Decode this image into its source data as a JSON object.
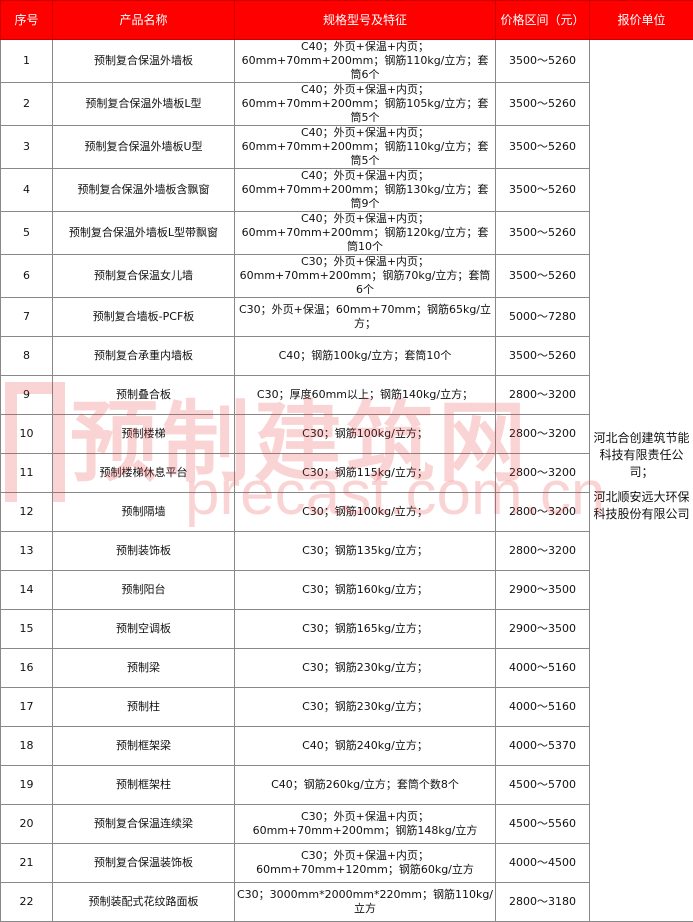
{
  "table": {
    "header": [
      "序号",
      "产品名称",
      "规格型号及特征",
      "价格区间（元）",
      "报价单位"
    ],
    "rows": [
      [
        "1",
        "预制复合保温外墙板",
        "C40；外页+保温+内页；60mm+70mm+200mm；钢筋110kg/立方；套筒6个",
        "3500～5260"
      ],
      [
        "2",
        "预制复合保温外墙板L型",
        "C40；外页+保温+内页；60mm+70mm+200mm；钢筋105kg/立方；套筒5个",
        "3500～5260"
      ],
      [
        "3",
        "预制复合保温外墙板U型",
        "C40；外页+保温+内页；60mm+70mm+200mm；钢筋110kg/立方；套筒5个",
        "3500～5260"
      ],
      [
        "4",
        "预制复合保温外墙板含飘窗",
        "C40；外页+保温+内页；60mm+70mm+200mm；钢筋130kg/立方；套筒9个",
        "3500～5260"
      ],
      [
        "5",
        "预制复合保温外墙板L型带飘窗",
        "C40；外页+保温+内页；60mm+70mm+200mm；钢筋120kg/立方；套筒10个",
        "3500～5260"
      ],
      [
        "6",
        "预制复合保温女儿墙",
        "C30；外页+保温+内页；60mm+70mm+200mm；钢筋70kg/立方；套筒6个",
        "3500～5260"
      ],
      [
        "7",
        "预制复合墙板-PCF板",
        "C30；外页+保温；60mm+70mm；钢筋65kg/立方；",
        "5000～7280"
      ],
      [
        "8",
        "预制复合承重内墙板",
        "C40；钢筋100kg/立方；套筒10个",
        "3500～5260"
      ],
      [
        "9",
        "预制叠合板",
        "C30；厚度60mm以上；钢筋140kg/立方；",
        "2800～3200"
      ],
      [
        "10",
        "预制楼梯",
        "C30；钢筋100kg/立方；",
        "2800～3200"
      ],
      [
        "11",
        "预制楼梯休息平台",
        "C30；钢筋115kg/立方；",
        "2800～3200"
      ],
      [
        "12",
        "预制隔墙",
        "C30；钢筋100kg/立方；",
        "2800～3200"
      ],
      [
        "13",
        "预制装饰板",
        "C30；钢筋135kg/立方；",
        "2800～3200"
      ],
      [
        "14",
        "预制阳台",
        "C30；钢筋160kg/立方；",
        "2900～3500"
      ],
      [
        "15",
        "预制空调板",
        "C30；钢筋165kg/立方；",
        "2900～3500"
      ],
      [
        "16",
        "预制梁",
        "C30；钢筋230kg/立方；",
        "4000～5160"
      ],
      [
        "17",
        "预制柱",
        "C30；钢筋230kg/立方；",
        "4000～5160"
      ],
      [
        "18",
        "预制框架梁",
        "C40；钢筋240kg/立方；",
        "4000～5370"
      ],
      [
        "19",
        "预制框架柱",
        "C40；钢筋260kg/立方；套筒个数8个",
        "4500～5700"
      ],
      [
        "20",
        "预制复合保温连续梁",
        "C30；外页+保温+内页；60mm+70mm+200mm；钢筋148kg/立方",
        "4500～5560"
      ],
      [
        "21",
        "预制复合保温装饰板",
        "C30；外页+保温+内页；60mm+70mm+120mm；钢筋60kg/立方",
        "4000～4500"
      ],
      [
        "22",
        "预制装配式花纹路面板",
        "C30；3000mm*2000mm*220mm；钢筋110kg/立方",
        "2800～3180"
      ]
    ],
    "suppliers": [
      "河北合创建筑节能科技有限责任公司；",
      "河北顺安远大环保科技股份有限公司"
    ]
  },
  "watermark": {
    "title": "预制建筑网",
    "url": "precast.com.cn"
  }
}
